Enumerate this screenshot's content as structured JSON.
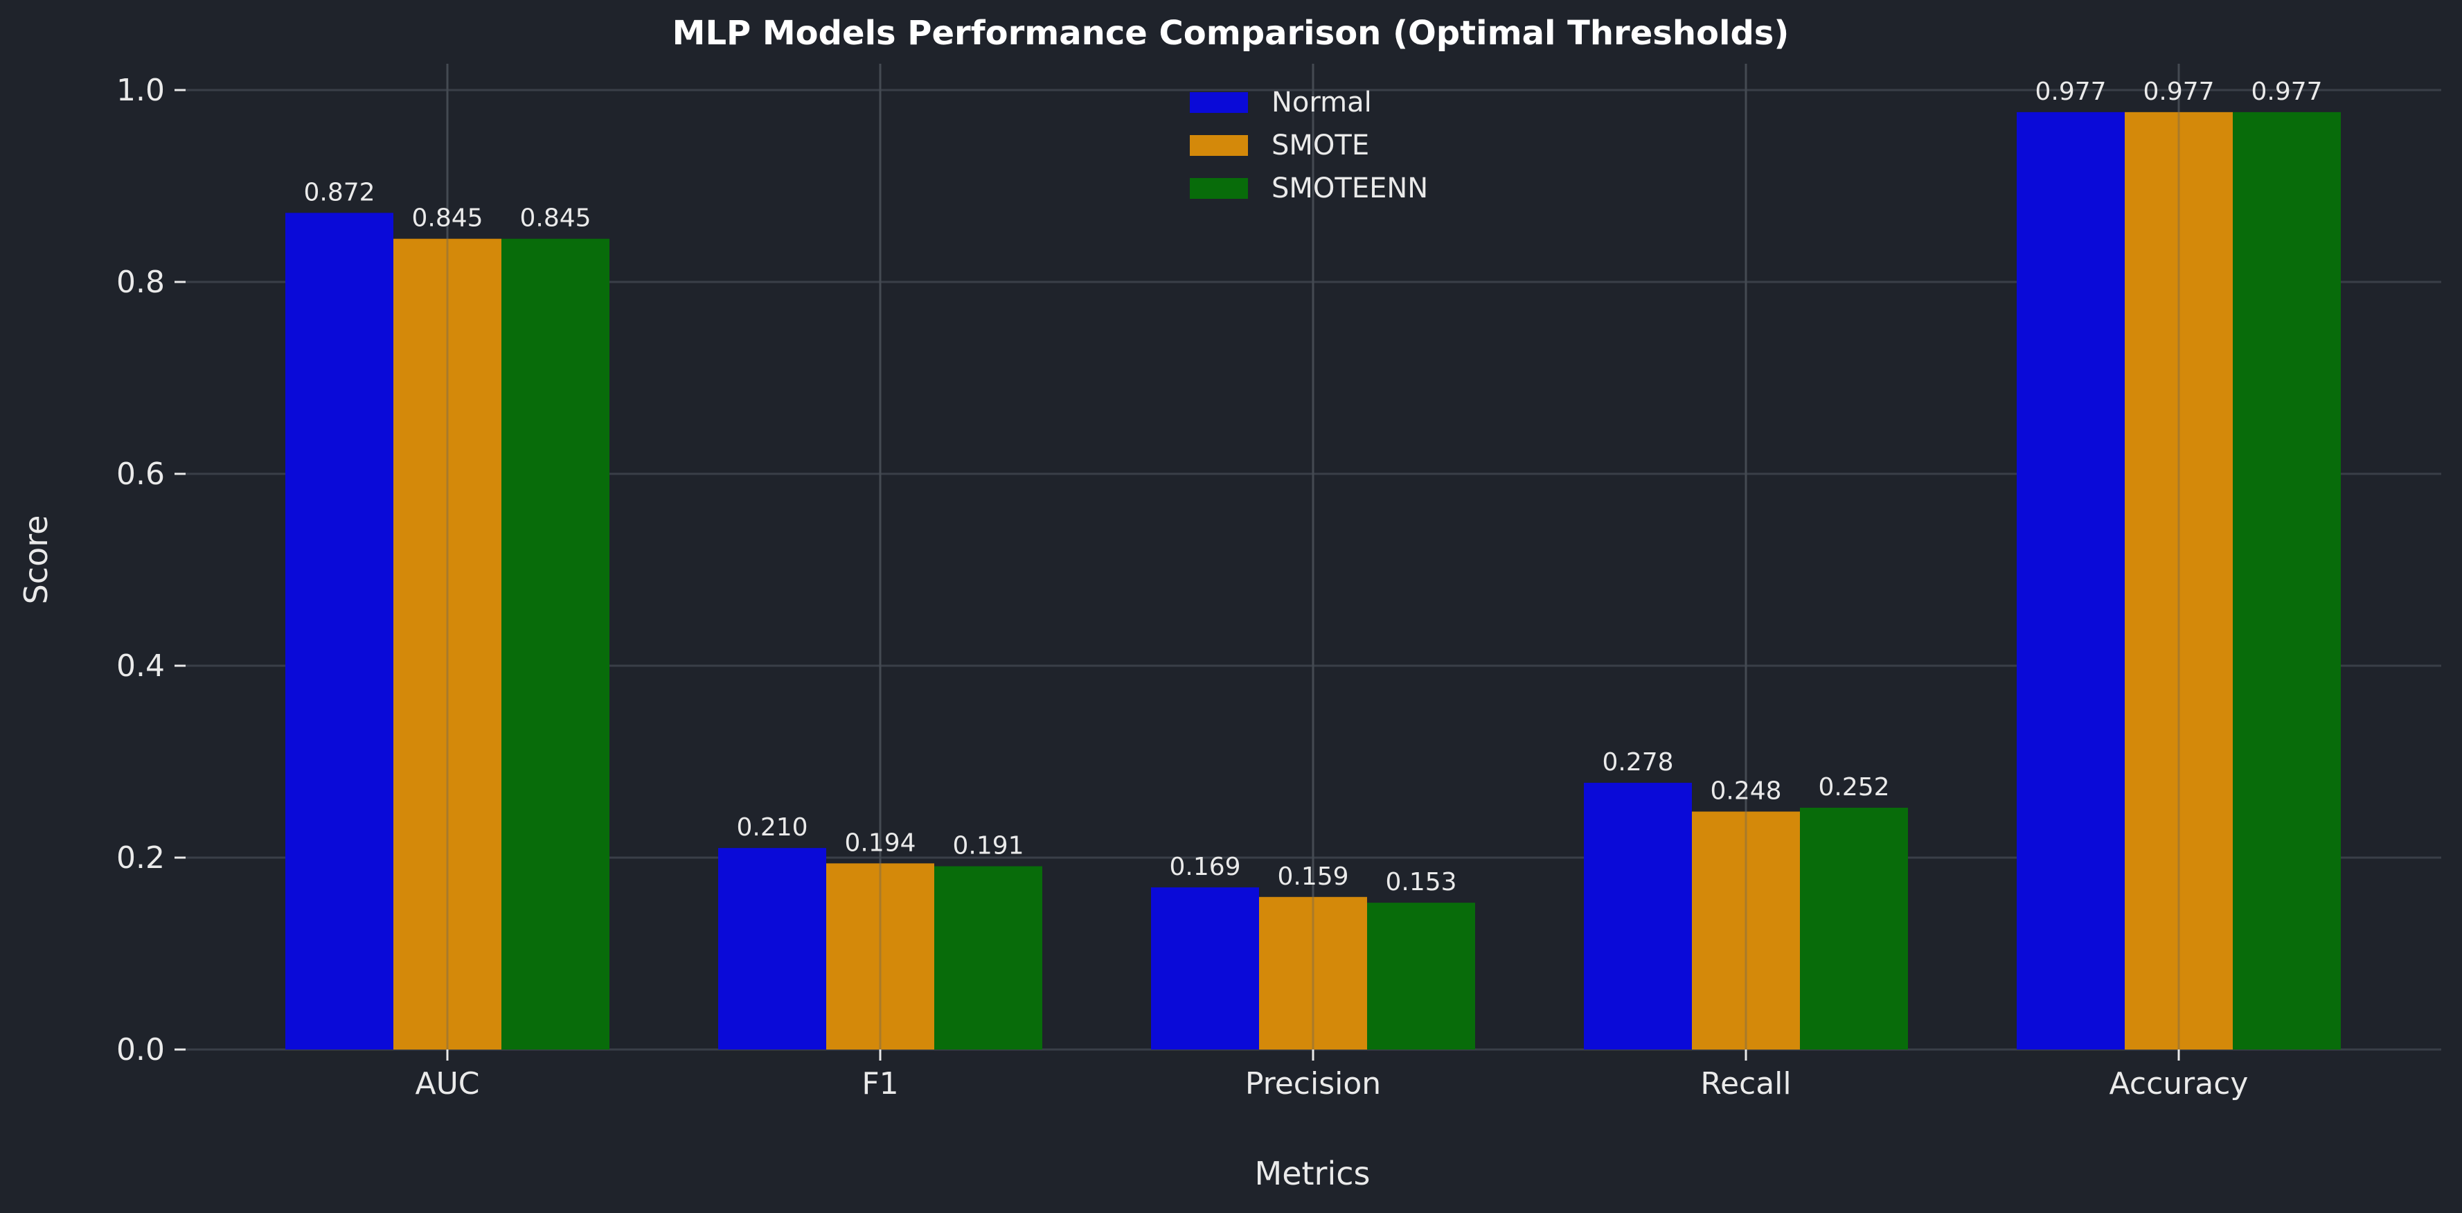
{
  "chart_data": {
    "type": "bar",
    "title": "MLP Models Performance Comparison (Optimal Thresholds)",
    "xlabel": "Metrics",
    "ylabel": "Score",
    "ylim": [
      0,
      1.0
    ],
    "yticks": [
      "0.0",
      "0.2",
      "0.4",
      "0.6",
      "0.8",
      "1.0"
    ],
    "categories": [
      "AUC",
      "F1",
      "Precision",
      "Recall",
      "Accuracy"
    ],
    "series": [
      {
        "name": "Normal",
        "color": "#0a0ad8",
        "values": [
          0.872,
          0.21,
          0.169,
          0.278,
          0.977
        ],
        "labels": [
          "0.872",
          "0.210",
          "0.169",
          "0.278",
          "0.977"
        ]
      },
      {
        "name": "SMOTE",
        "color": "#d4890a",
        "values": [
          0.845,
          0.194,
          0.159,
          0.248,
          0.977
        ],
        "labels": [
          "0.845",
          "0.194",
          "0.159",
          "0.248",
          "0.977"
        ]
      },
      {
        "name": "SMOTEENN",
        "color": "#086c0a",
        "values": [
          0.845,
          0.191,
          0.153,
          0.252,
          0.977
        ],
        "labels": [
          "0.845",
          "0.191",
          "0.153",
          "0.252",
          "0.977"
        ]
      }
    ],
    "grid": true,
    "legend_position": "top-center"
  }
}
